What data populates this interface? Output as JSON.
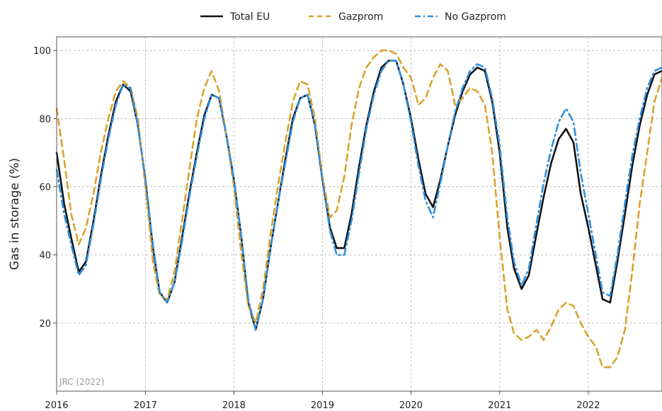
{
  "chart_data": {
    "type": "line",
    "xlabel": "",
    "ylabel": "Gas in storage (%)",
    "ylim": [
      0,
      104
    ],
    "xlim": [
      "2016-01-01",
      "2022-11-01"
    ],
    "x_ticks": [
      "2016",
      "2017",
      "2018",
      "2019",
      "2020",
      "2021",
      "2022"
    ],
    "y_ticks": [
      20,
      40,
      60,
      80,
      100
    ],
    "grid": true,
    "legend_position": "top-center",
    "annotation": "JRC (2022)",
    "series": [
      {
        "name": "Total EU",
        "color": "#111111",
        "style": "solid",
        "points": [
          [
            "2016-01-01",
            70
          ],
          [
            "2016-02-01",
            55
          ],
          [
            "2016-03-01",
            45
          ],
          [
            "2016-04-01",
            35
          ],
          [
            "2016-05-01",
            38
          ],
          [
            "2016-06-01",
            50
          ],
          [
            "2016-07-01",
            63
          ],
          [
            "2016-08-01",
            75
          ],
          [
            "2016-09-01",
            85
          ],
          [
            "2016-10-01",
            90
          ],
          [
            "2016-11-01",
            88
          ],
          [
            "2016-12-01",
            78
          ],
          [
            "2017-01-01",
            62
          ],
          [
            "2017-02-01",
            42
          ],
          [
            "2017-03-01",
            29
          ],
          [
            "2017-04-01",
            26
          ],
          [
            "2017-05-01",
            32
          ],
          [
            "2017-06-01",
            45
          ],
          [
            "2017-07-01",
            58
          ],
          [
            "2017-08-01",
            70
          ],
          [
            "2017-09-01",
            81
          ],
          [
            "2017-10-01",
            87
          ],
          [
            "2017-11-01",
            86
          ],
          [
            "2017-12-01",
            75
          ],
          [
            "2018-01-01",
            62
          ],
          [
            "2018-02-01",
            45
          ],
          [
            "2018-03-01",
            26
          ],
          [
            "2018-04-01",
            18
          ],
          [
            "2018-05-01",
            27
          ],
          [
            "2018-06-01",
            42
          ],
          [
            "2018-07-01",
            55
          ],
          [
            "2018-08-01",
            68
          ],
          [
            "2018-09-01",
            80
          ],
          [
            "2018-10-01",
            86
          ],
          [
            "2018-11-01",
            87
          ],
          [
            "2018-12-01",
            78
          ],
          [
            "2019-01-01",
            62
          ],
          [
            "2019-02-01",
            48
          ],
          [
            "2019-03-01",
            42
          ],
          [
            "2019-04-01",
            42
          ],
          [
            "2019-05-01",
            52
          ],
          [
            "2019-06-01",
            66
          ],
          [
            "2019-07-01",
            78
          ],
          [
            "2019-08-01",
            88
          ],
          [
            "2019-09-01",
            95
          ],
          [
            "2019-10-01",
            97
          ],
          [
            "2019-11-01",
            97
          ],
          [
            "2019-12-01",
            90
          ],
          [
            "2020-01-01",
            80
          ],
          [
            "2020-02-01",
            68
          ],
          [
            "2020-03-01",
            58
          ],
          [
            "2020-04-01",
            54
          ],
          [
            "2020-05-01",
            62
          ],
          [
            "2020-06-01",
            72
          ],
          [
            "2020-07-01",
            81
          ],
          [
            "2020-08-01",
            88
          ],
          [
            "2020-09-01",
            93
          ],
          [
            "2020-10-01",
            95
          ],
          [
            "2020-11-01",
            94
          ],
          [
            "2020-12-01",
            85
          ],
          [
            "2021-01-01",
            70
          ],
          [
            "2021-02-01",
            48
          ],
          [
            "2021-03-01",
            36
          ],
          [
            "2021-04-01",
            30
          ],
          [
            "2021-05-01",
            34
          ],
          [
            "2021-06-01",
            46
          ],
          [
            "2021-07-01",
            57
          ],
          [
            "2021-08-01",
            67
          ],
          [
            "2021-09-01",
            74
          ],
          [
            "2021-10-01",
            77
          ],
          [
            "2021-11-01",
            73
          ],
          [
            "2021-12-01",
            58
          ],
          [
            "2022-01-01",
            48
          ],
          [
            "2022-02-01",
            37
          ],
          [
            "2022-03-01",
            27
          ],
          [
            "2022-04-01",
            26
          ],
          [
            "2022-05-01",
            38
          ],
          [
            "2022-06-01",
            52
          ],
          [
            "2022-07-01",
            66
          ],
          [
            "2022-08-01",
            78
          ],
          [
            "2022-09-01",
            87
          ],
          [
            "2022-10-01",
            93
          ],
          [
            "2022-11-01",
            94
          ]
        ]
      },
      {
        "name": "Gazprom",
        "color": "#d9a32c",
        "style": "dashed",
        "points": [
          [
            "2016-01-01",
            83
          ],
          [
            "2016-02-01",
            68
          ],
          [
            "2016-03-01",
            52
          ],
          [
            "2016-04-01",
            43
          ],
          [
            "2016-05-01",
            48
          ],
          [
            "2016-06-01",
            58
          ],
          [
            "2016-07-01",
            70
          ],
          [
            "2016-08-01",
            80
          ],
          [
            "2016-09-01",
            88
          ],
          [
            "2016-10-01",
            91
          ],
          [
            "2016-11-01",
            89
          ],
          [
            "2016-12-01",
            80
          ],
          [
            "2017-01-01",
            60
          ],
          [
            "2017-02-01",
            38
          ],
          [
            "2017-03-01",
            28
          ],
          [
            "2017-04-01",
            27
          ],
          [
            "2017-05-01",
            35
          ],
          [
            "2017-06-01",
            50
          ],
          [
            "2017-07-01",
            65
          ],
          [
            "2017-08-01",
            80
          ],
          [
            "2017-09-01",
            89
          ],
          [
            "2017-10-01",
            94
          ],
          [
            "2017-11-01",
            88
          ],
          [
            "2017-12-01",
            75
          ],
          [
            "2018-01-01",
            60
          ],
          [
            "2018-02-01",
            40
          ],
          [
            "2018-03-01",
            25
          ],
          [
            "2018-04-01",
            20
          ],
          [
            "2018-05-01",
            30
          ],
          [
            "2018-06-01",
            46
          ],
          [
            "2018-07-01",
            60
          ],
          [
            "2018-08-01",
            73
          ],
          [
            "2018-09-01",
            85
          ],
          [
            "2018-10-01",
            91
          ],
          [
            "2018-11-01",
            90
          ],
          [
            "2018-12-01",
            80
          ],
          [
            "2019-01-01",
            63
          ],
          [
            "2019-02-01",
            51
          ],
          [
            "2019-03-01",
            53
          ],
          [
            "2019-04-01",
            63
          ],
          [
            "2019-05-01",
            78
          ],
          [
            "2019-06-01",
            89
          ],
          [
            "2019-07-01",
            95
          ],
          [
            "2019-08-01",
            98
          ],
          [
            "2019-09-01",
            100
          ],
          [
            "2019-10-01",
            100
          ],
          [
            "2019-11-01",
            99
          ],
          [
            "2019-12-01",
            95
          ],
          [
            "2020-01-01",
            92
          ],
          [
            "2020-02-01",
            84
          ],
          [
            "2020-03-01",
            86
          ],
          [
            "2020-04-01",
            92
          ],
          [
            "2020-05-01",
            96
          ],
          [
            "2020-06-01",
            94
          ],
          [
            "2020-07-01",
            84
          ],
          [
            "2020-08-01",
            86
          ],
          [
            "2020-09-01",
            89
          ],
          [
            "2020-10-01",
            88
          ],
          [
            "2020-11-01",
            84
          ],
          [
            "2020-12-01",
            70
          ],
          [
            "2021-01-01",
            45
          ],
          [
            "2021-02-01",
            24
          ],
          [
            "2021-03-01",
            17
          ],
          [
            "2021-04-01",
            15
          ],
          [
            "2021-05-01",
            16
          ],
          [
            "2021-06-01",
            18
          ],
          [
            "2021-07-01",
            15
          ],
          [
            "2021-08-01",
            19
          ],
          [
            "2021-09-01",
            24
          ],
          [
            "2021-10-01",
            26
          ],
          [
            "2021-11-01",
            25
          ],
          [
            "2021-12-01",
            20
          ],
          [
            "2022-01-01",
            16
          ],
          [
            "2022-02-01",
            13
          ],
          [
            "2022-03-01",
            7
          ],
          [
            "2022-04-01",
            7
          ],
          [
            "2022-05-01",
            10
          ],
          [
            "2022-06-01",
            18
          ],
          [
            "2022-07-01",
            35
          ],
          [
            "2022-08-01",
            55
          ],
          [
            "2022-09-01",
            70
          ],
          [
            "2022-10-01",
            85
          ],
          [
            "2022-11-01",
            92
          ]
        ]
      },
      {
        "name": "No Gazprom",
        "color": "#2f8fe0",
        "style": "dashdot",
        "points": [
          [
            "2016-01-01",
            65
          ],
          [
            "2016-02-01",
            52
          ],
          [
            "2016-03-01",
            43
          ],
          [
            "2016-04-01",
            34
          ],
          [
            "2016-05-01",
            37
          ],
          [
            "2016-06-01",
            49
          ],
          [
            "2016-07-01",
            62
          ],
          [
            "2016-08-01",
            74
          ],
          [
            "2016-09-01",
            84
          ],
          [
            "2016-10-01",
            90
          ],
          [
            "2016-11-01",
            89
          ],
          [
            "2016-12-01",
            78
          ],
          [
            "2017-01-01",
            62
          ],
          [
            "2017-02-01",
            43
          ],
          [
            "2017-03-01",
            29
          ],
          [
            "2017-04-01",
            26
          ],
          [
            "2017-05-01",
            32
          ],
          [
            "2017-06-01",
            44
          ],
          [
            "2017-07-01",
            57
          ],
          [
            "2017-08-01",
            69
          ],
          [
            "2017-09-01",
            80
          ],
          [
            "2017-10-01",
            87
          ],
          [
            "2017-11-01",
            86
          ],
          [
            "2017-12-01",
            75
          ],
          [
            "2018-01-01",
            62
          ],
          [
            "2018-02-01",
            45
          ],
          [
            "2018-03-01",
            27
          ],
          [
            "2018-04-01",
            18
          ],
          [
            "2018-05-01",
            27
          ],
          [
            "2018-06-01",
            42
          ],
          [
            "2018-07-01",
            55
          ],
          [
            "2018-08-01",
            67
          ],
          [
            "2018-09-01",
            79
          ],
          [
            "2018-10-01",
            86
          ],
          [
            "2018-11-01",
            87
          ],
          [
            "2018-12-01",
            78
          ],
          [
            "2019-01-01",
            62
          ],
          [
            "2019-02-01",
            47
          ],
          [
            "2019-03-01",
            40
          ],
          [
            "2019-04-01",
            40
          ],
          [
            "2019-05-01",
            50
          ],
          [
            "2019-06-01",
            64
          ],
          [
            "2019-07-01",
            77
          ],
          [
            "2019-08-01",
            87
          ],
          [
            "2019-09-01",
            94
          ],
          [
            "2019-10-01",
            97
          ],
          [
            "2019-11-01",
            97
          ],
          [
            "2019-12-01",
            90
          ],
          [
            "2020-01-01",
            79
          ],
          [
            "2020-02-01",
            66
          ],
          [
            "2020-03-01",
            56
          ],
          [
            "2020-04-01",
            51
          ],
          [
            "2020-05-01",
            61
          ],
          [
            "2020-06-01",
            72
          ],
          [
            "2020-07-01",
            82
          ],
          [
            "2020-08-01",
            89
          ],
          [
            "2020-09-01",
            94
          ],
          [
            "2020-10-01",
            96
          ],
          [
            "2020-11-01",
            95
          ],
          [
            "2020-12-01",
            86
          ],
          [
            "2021-01-01",
            72
          ],
          [
            "2021-02-01",
            51
          ],
          [
            "2021-03-01",
            38
          ],
          [
            "2021-04-01",
            31
          ],
          [
            "2021-05-01",
            36
          ],
          [
            "2021-06-01",
            49
          ],
          [
            "2021-07-01",
            61
          ],
          [
            "2021-08-01",
            71
          ],
          [
            "2021-09-01",
            79
          ],
          [
            "2021-10-01",
            83
          ],
          [
            "2021-11-01",
            79
          ],
          [
            "2021-12-01",
            64
          ],
          [
            "2022-01-01",
            52
          ],
          [
            "2022-02-01",
            40
          ],
          [
            "2022-03-01",
            29
          ],
          [
            "2022-04-01",
            28
          ],
          [
            "2022-05-01",
            40
          ],
          [
            "2022-06-01",
            55
          ],
          [
            "2022-07-01",
            69
          ],
          [
            "2022-08-01",
            80
          ],
          [
            "2022-09-01",
            89
          ],
          [
            "2022-10-01",
            94
          ],
          [
            "2022-11-01",
            95
          ]
        ]
      }
    ]
  }
}
